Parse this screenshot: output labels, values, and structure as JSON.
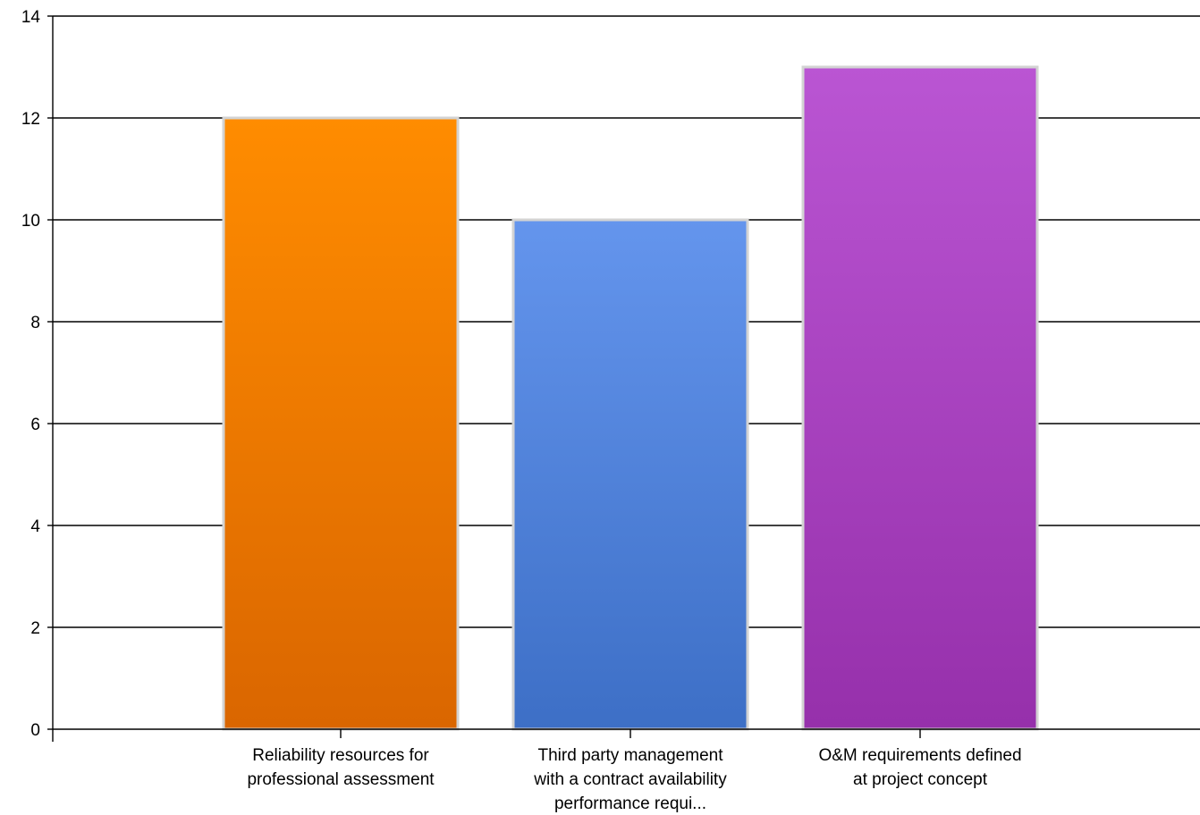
{
  "chart_data": {
    "type": "bar",
    "categories": [
      [
        "Reliability resources for",
        "professional assessment"
      ],
      [
        "Third party management",
        "with a contract availability",
        "performance requi..."
      ],
      [
        "O&M requirements defined",
        "at project concept"
      ]
    ],
    "values": [
      12,
      10,
      13
    ],
    "colors": [
      {
        "top": "#ff8c00",
        "bottom": "#da6600"
      },
      {
        "top": "#6495ed",
        "bottom": "#3d6fc6"
      },
      {
        "top": "#ba55d3",
        "bottom": "#9630ab"
      }
    ],
    "bar_border_color": "#d3d3d3",
    "ylim": [
      0,
      14
    ],
    "yticks": [
      0,
      2,
      4,
      6,
      8,
      10,
      12,
      14
    ],
    "grid": true,
    "title": "",
    "xlabel": "",
    "ylabel": ""
  }
}
